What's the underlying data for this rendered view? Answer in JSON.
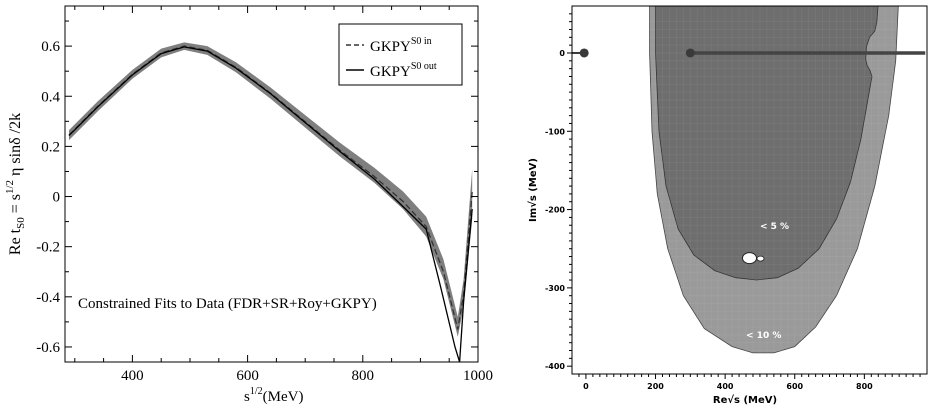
{
  "chart_data": [
    {
      "type": "line",
      "title": "",
      "annotation": "Constrained Fits to Data (FDR+SR+Roy+GKPY)",
      "ylabel_text": "Re t",
      "ylabel_sub": "S0",
      "ylabel_rest": " = s",
      "ylabel_sup": "1/2",
      "ylabel_tail": " η sinδ /2k",
      "xlabel_text": "s",
      "xlabel_sup": "1/2",
      "xlabel_unit": "(MeV)",
      "xlim": [
        283,
        1000
      ],
      "ylim": [
        -0.66,
        0.76
      ],
      "xticks": [
        400,
        600,
        800,
        1000
      ],
      "yticks": [
        -0.6,
        -0.4,
        -0.2,
        0,
        0.2,
        0.4,
        0.6
      ],
      "xtick_labels": [
        "400",
        "600",
        "800",
        "1000"
      ],
      "ytick_labels": [
        "-0.6",
        "-0.4",
        "-0.2",
        "0",
        "0.2",
        "0.4",
        "0.6"
      ],
      "legend_position": "top-right",
      "legend": [
        {
          "base": "GKPY",
          "sup": "S0 in",
          "style": "dashed"
        },
        {
          "base": "GKPY",
          "sup": "S0 out",
          "style": "solid"
        }
      ],
      "series": [
        {
          "style": "band",
          "color": "#7f7f7f",
          "x": [
            290,
            340,
            400,
            450,
            490,
            530,
            580,
            640,
            700,
            760,
            820,
            870,
            910,
            940,
            965,
            975,
            990
          ],
          "y_low": [
            0.225,
            0.34,
            0.47,
            0.555,
            0.585,
            0.565,
            0.495,
            0.39,
            0.275,
            0.16,
            0.055,
            -0.05,
            -0.16,
            -0.33,
            -0.56,
            -0.44,
            -0.09
          ],
          "y_high": [
            0.265,
            0.38,
            0.505,
            0.59,
            0.615,
            0.6,
            0.535,
            0.435,
            0.325,
            0.215,
            0.115,
            0.02,
            -0.08,
            -0.25,
            -0.48,
            -0.33,
            0.11
          ]
        },
        {
          "name": "GKPY S0 in",
          "style": "dashed",
          "color": "#333333",
          "x": [
            290,
            340,
            400,
            450,
            490,
            530,
            580,
            640,
            700,
            760,
            820,
            870,
            910,
            940,
            965,
            975,
            990
          ],
          "y": [
            0.245,
            0.36,
            0.487,
            0.573,
            0.6,
            0.583,
            0.515,
            0.412,
            0.298,
            0.185,
            0.08,
            -0.02,
            -0.12,
            -0.3,
            -0.53,
            -0.39,
            0.02
          ]
        },
        {
          "name": "GKPY S0 out",
          "style": "solid",
          "color": "#000000",
          "x": [
            290,
            340,
            400,
            450,
            490,
            530,
            580,
            640,
            700,
            760,
            820,
            870,
            910,
            935,
            960,
            968,
            975,
            990
          ],
          "y": [
            0.243,
            0.358,
            0.485,
            0.57,
            0.597,
            0.58,
            0.512,
            0.41,
            0.295,
            0.18,
            0.07,
            -0.04,
            -0.13,
            -0.36,
            -0.6,
            -0.66,
            -0.42,
            -0.05
          ]
        }
      ]
    },
    {
      "type": "contour",
      "title": "",
      "xlabel_pre": "Re",
      "xlabel_root": "√s",
      "xlabel_unit": " (MeV)",
      "ylabel_pre": "Im",
      "ylabel_root": "√s",
      "ylabel_unit": " (MeV)",
      "xlim": [
        -40,
        980
      ],
      "ylim": [
        -410,
        60
      ],
      "xticks": [
        0,
        200,
        400,
        600,
        800
      ],
      "yticks": [
        0,
        -100,
        -200,
        -300,
        -400
      ],
      "xtick_labels": [
        "0",
        "200",
        "400",
        "600",
        "800"
      ],
      "ytick_labels": [
        "0",
        "-100",
        "-200",
        "-300",
        "-400"
      ],
      "regions": [
        {
          "label": "< 10 %",
          "color": "#9a9a9a"
        },
        {
          "label": "< 5 %",
          "color": "#6e6e6e"
        }
      ],
      "cut_line": {
        "x_start": 300,
        "x_end": 975,
        "y": 0,
        "color": "#444444"
      },
      "points": [
        {
          "x": -5,
          "y": 0,
          "color": "#3a3a3a"
        },
        {
          "x": 300,
          "y": 0,
          "color": "#3a3a3a"
        }
      ],
      "pole_marker": {
        "x": 470,
        "y": -262,
        "color": "#ffffff"
      }
    }
  ]
}
